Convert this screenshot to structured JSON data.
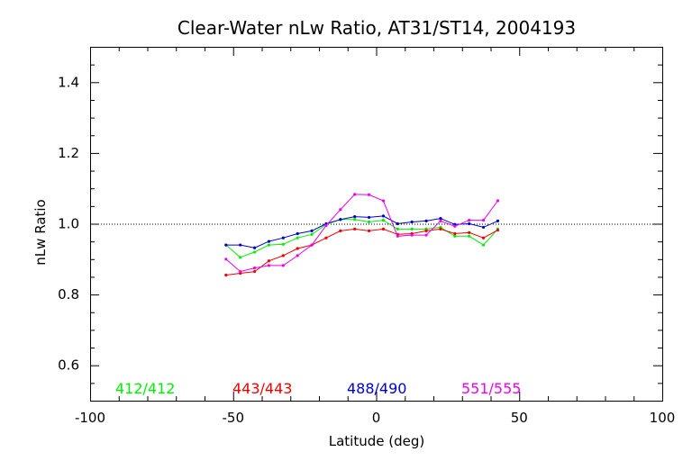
{
  "chart_data": {
    "type": "line",
    "title": "Clear-Water nLw Ratio, AT31/ST14, 2004193",
    "xlabel": "Latitude (deg)",
    "ylabel": "nLw Ratio",
    "xlim": [
      -100,
      100
    ],
    "ylim": [
      0.5,
      1.5
    ],
    "xticks": [
      -100,
      -50,
      0,
      50,
      100
    ],
    "yticks": [
      0.6,
      0.8,
      1.0,
      1.2,
      1.4
    ],
    "xtick_labels": [
      "-100",
      "-50",
      "0",
      "50",
      "100"
    ],
    "ytick_labels": [
      "0.6",
      "0.8",
      "1.0",
      "1.2",
      "1.4"
    ],
    "reference_line": 1.0,
    "grid": false,
    "legend_position": "bottom",
    "x": [
      -52.5,
      -47.5,
      -42.5,
      -37.5,
      -32.5,
      -27.5,
      -22.5,
      -17.5,
      -12.5,
      -7.5,
      -2.5,
      2.5,
      7.5,
      12.5,
      17.5,
      22.5,
      27.5,
      32.5,
      37.5,
      42.5
    ],
    "series": [
      {
        "name": "412/412",
        "color": "#00ee00",
        "values": [
          0.94,
          0.905,
          0.92,
          0.94,
          0.942,
          0.96,
          0.97,
          0.998,
          1.012,
          1.012,
          1.005,
          1.01,
          0.985,
          0.985,
          0.985,
          0.99,
          0.965,
          0.965,
          0.94,
          0.985
        ]
      },
      {
        "name": "443/443",
        "color": "#ee0000",
        "values": [
          0.855,
          0.86,
          0.865,
          0.895,
          0.91,
          0.93,
          0.94,
          0.96,
          0.98,
          0.985,
          0.98,
          0.985,
          0.97,
          0.972,
          0.98,
          0.985,
          0.972,
          0.975,
          0.96,
          0.982
        ]
      },
      {
        "name": "488/490",
        "color": "#0000cc",
        "values": [
          0.94,
          0.94,
          0.932,
          0.95,
          0.96,
          0.972,
          0.98,
          1.0,
          1.012,
          1.02,
          1.018,
          1.022,
          1.0,
          1.005,
          1.008,
          1.015,
          0.998,
          1.0,
          0.99,
          1.008
        ]
      },
      {
        "name": "551/555",
        "color": "#ee00ee",
        "values": [
          0.9,
          0.865,
          0.875,
          0.882,
          0.882,
          0.91,
          0.94,
          0.995,
          1.04,
          1.083,
          1.082,
          1.065,
          0.965,
          0.968,
          0.968,
          1.008,
          0.993,
          1.01,
          1.01,
          1.065
        ]
      }
    ]
  }
}
